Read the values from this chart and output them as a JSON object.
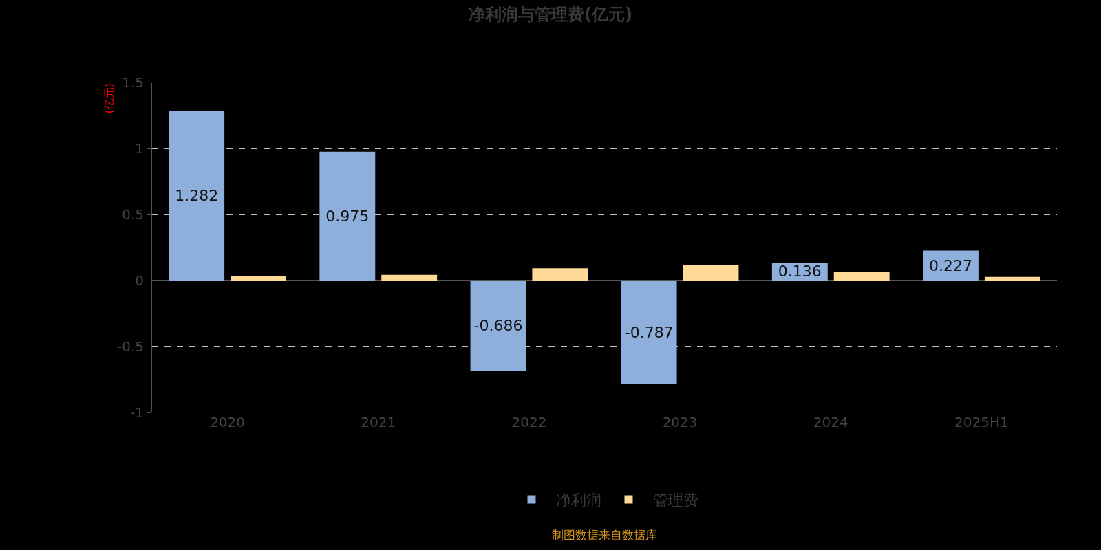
{
  "chart_data": {
    "type": "bar",
    "title": "净利润与管理费(亿元)",
    "ylabel": "(亿元)",
    "categories": [
      "2020",
      "2021",
      "2022",
      "2023",
      "2024",
      "2025H1"
    ],
    "series": [
      {
        "name": "净利润",
        "color": "#8eaedc",
        "values": [
          1.282,
          0.975,
          -0.686,
          -0.787,
          0.136,
          0.227
        ],
        "value_labels": [
          "1.282",
          "0.975",
          "-0.686",
          "-0.787",
          "0.136",
          "0.227"
        ]
      },
      {
        "name": "管理费",
        "color": "#ffd996",
        "values": [
          0.036,
          0.043,
          0.092,
          0.114,
          0.063,
          0.027
        ]
      }
    ],
    "ylim": [
      -1,
      1.5
    ],
    "yticks": [
      1.5,
      1,
      0.5,
      0,
      -0.5,
      -1
    ],
    "grid": "y",
    "legend": "bottom",
    "annotations": [
      "制图数据来自数据库"
    ]
  }
}
